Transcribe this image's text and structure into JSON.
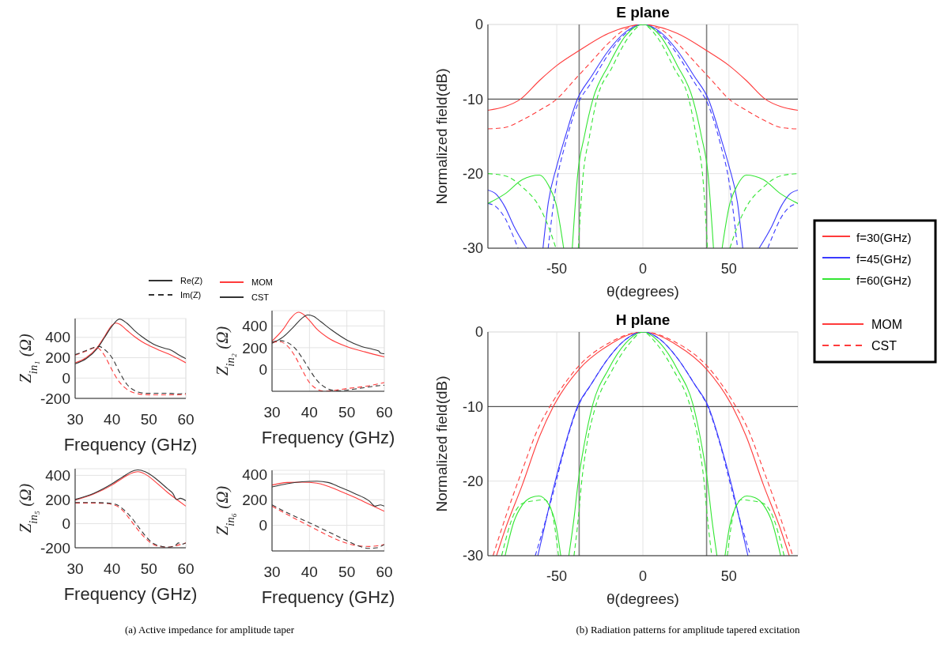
{
  "chart_data": [
    {
      "type": "line",
      "ylabel": "Z$_{in₁}$ (Ω)",
      "xlabel": "Frequency (GHz)",
      "xlim": [
        30,
        60
      ],
      "xticks": [
        30,
        40,
        50,
        60
      ],
      "ylim": [
        -200,
        585
      ],
      "yticks": [
        -200,
        0,
        200,
        400
      ],
      "grid": true,
      "annotations": [
        "Re(Z)",
        "Im(Z)",
        "MOM",
        "CST",
        "(a) Active impedance for amplitude taper"
      ],
      "series": [
        {
          "color": "#ff3b3b",
          "line_style": "solid",
          "x": [
            30,
            33,
            36,
            38,
            40,
            41,
            42,
            44,
            46,
            48,
            50,
            53,
            56,
            60
          ],
          "values": [
            150,
            200,
            300,
            410,
            520,
            540,
            530,
            470,
            410,
            360,
            320,
            270,
            225,
            150
          ]
        },
        {
          "color": "#333333",
          "line_style": "solid",
          "x": [
            30,
            33,
            36,
            38,
            40,
            42,
            44,
            46,
            48,
            50,
            52,
            54,
            56,
            58,
            59,
            60
          ],
          "values": [
            140,
            190,
            290,
            400,
            510,
            580,
            540,
            470,
            410,
            360,
            320,
            295,
            275,
            230,
            210,
            190
          ]
        },
        {
          "color": "#ff3b3b",
          "line_style": "dashed",
          "x": [
            30,
            33,
            35,
            36,
            37,
            38,
            40,
            42,
            44,
            46,
            48,
            52,
            56,
            60
          ],
          "values": [
            225,
            265,
            295,
            300,
            270,
            220,
            80,
            -40,
            -110,
            -145,
            -160,
            -165,
            -165,
            -160
          ]
        },
        {
          "color": "#333333",
          "line_style": "dashed",
          "x": [
            30,
            33,
            35,
            36.5,
            38,
            40,
            42,
            44,
            46,
            48,
            50,
            55,
            58,
            60
          ],
          "values": [
            230,
            270,
            300,
            310,
            280,
            200,
            60,
            -60,
            -120,
            -145,
            -150,
            -150,
            -155,
            -150
          ]
        }
      ]
    },
    {
      "type": "line",
      "ylabel": "Z$_{in₂}$ (Ω)",
      "xlabel": "Frequency (GHz)",
      "xlim": [
        30,
        60
      ],
      "xticks": [
        30,
        40,
        50,
        60
      ],
      "ylim": [
        -200,
        540
      ],
      "yticks": [
        0,
        200,
        400
      ],
      "grid": true,
      "series": [
        {
          "color": "#ff3b3b",
          "line_style": "solid",
          "x": [
            30,
            33,
            35,
            37,
            38,
            40,
            42,
            45,
            50,
            55,
            60
          ],
          "values": [
            260,
            370,
            470,
            525,
            515,
            450,
            370,
            290,
            210,
            160,
            115
          ]
        },
        {
          "color": "#333333",
          "line_style": "solid",
          "x": [
            30,
            33,
            36,
            38,
            39.5,
            41,
            43,
            46,
            50,
            54,
            57,
            58.5,
            59,
            60
          ],
          "values": [
            240,
            300,
            400,
            470,
            500,
            490,
            440,
            360,
            270,
            210,
            185,
            170,
            150,
            145
          ]
        },
        {
          "color": "#ff3b3b",
          "line_style": "dashed",
          "x": [
            30,
            32,
            34,
            36,
            38,
            40,
            42,
            44,
            46,
            50,
            55,
            60
          ],
          "values": [
            250,
            255,
            220,
            130,
            0,
            -120,
            -180,
            -200,
            -195,
            -175,
            -155,
            -120
          ]
        },
        {
          "color": "#333333",
          "line_style": "dashed",
          "x": [
            30,
            32,
            34,
            36,
            38,
            40,
            42,
            44,
            46,
            48,
            52,
            56,
            58,
            60
          ],
          "values": [
            250,
            265,
            250,
            200,
            110,
            0,
            -100,
            -160,
            -190,
            -195,
            -180,
            -160,
            -150,
            -145
          ]
        }
      ]
    },
    {
      "type": "line",
      "ylabel": "Z$_{in₅}$ (Ω)",
      "xlabel": "Frequency (GHz)",
      "xlim": [
        30,
        60
      ],
      "xticks": [
        30,
        40,
        50,
        60
      ],
      "ylim": [
        -200,
        455
      ],
      "yticks": [
        -200,
        0,
        200,
        400
      ],
      "grid": true,
      "series": [
        {
          "color": "#ff3b3b",
          "line_style": "solid",
          "x": [
            30,
            35,
            40,
            43,
            46,
            47,
            49,
            52,
            55,
            58,
            60
          ],
          "values": [
            195,
            245,
            320,
            380,
            425,
            430,
            410,
            340,
            260,
            190,
            145
          ]
        },
        {
          "color": "#333333",
          "line_style": "solid",
          "x": [
            30,
            35,
            40,
            43,
            46,
            47,
            49,
            52,
            55,
            56.5,
            57.5,
            58.5,
            60
          ],
          "values": [
            200,
            250,
            330,
            390,
            440,
            445,
            430,
            370,
            290,
            250,
            200,
            210,
            190
          ]
        },
        {
          "color": "#ff3b3b",
          "line_style": "dashed",
          "x": [
            30,
            35,
            38,
            41,
            43,
            45,
            47,
            49,
            51,
            53,
            55,
            57,
            60
          ],
          "values": [
            170,
            170,
            168,
            150,
            105,
            30,
            -50,
            -120,
            -170,
            -190,
            -195,
            -185,
            -160
          ]
        },
        {
          "color": "#333333",
          "line_style": "dashed",
          "x": [
            30,
            35,
            38,
            41,
            43,
            45,
            47,
            49,
            51,
            53,
            55,
            57,
            58,
            59,
            60
          ],
          "values": [
            175,
            175,
            172,
            160,
            120,
            60,
            -20,
            -100,
            -160,
            -185,
            -195,
            -185,
            -160,
            -170,
            -160
          ]
        }
      ]
    },
    {
      "type": "line",
      "ylabel": "Z$_{in₆}$ (Ω)",
      "xlabel": "Frequency (GHz)",
      "xlim": [
        30,
        60
      ],
      "xticks": [
        30,
        40,
        50,
        60
      ],
      "ylim": [
        -200,
        430
      ],
      "yticks": [
        0,
        200,
        400
      ],
      "grid": true,
      "series": [
        {
          "color": "#ff3b3b",
          "line_style": "solid",
          "x": [
            30,
            34,
            38,
            42,
            45,
            48,
            52,
            56,
            60
          ],
          "values": [
            315,
            335,
            337,
            330,
            305,
            270,
            220,
            165,
            110
          ]
        },
        {
          "color": "#333333",
          "line_style": "solid",
          "x": [
            30,
            34,
            38,
            42,
            45,
            48,
            52,
            56,
            57.5,
            59,
            60
          ],
          "values": [
            300,
            325,
            340,
            345,
            335,
            300,
            250,
            190,
            150,
            160,
            150
          ]
        },
        {
          "color": "#ff3b3b",
          "line_style": "dashed",
          "x": [
            30,
            35,
            40,
            45,
            50,
            53,
            56,
            60
          ],
          "values": [
            150,
            70,
            -5,
            -80,
            -140,
            -160,
            -165,
            -150
          ]
        },
        {
          "color": "#333333",
          "line_style": "dashed",
          "x": [
            30,
            35,
            40,
            45,
            50,
            53,
            56,
            58,
            60
          ],
          "values": [
            160,
            85,
            20,
            -50,
            -120,
            -160,
            -180,
            -175,
            -150
          ]
        }
      ]
    },
    {
      "type": "line",
      "title": "E plane",
      "xlabel": "θ(degrees)",
      "ylabel": "Normalized field(dB)",
      "xlim": [
        -90,
        90
      ],
      "xticks": [
        -50,
        0,
        50
      ],
      "ylim": [
        -30,
        0
      ],
      "yticks": [
        -30,
        -20,
        -10,
        0
      ],
      "grid": true,
      "legend": "right",
      "ref_lines": [
        {
          "axis": "x",
          "value": -37,
          "color": "#808080"
        },
        {
          "axis": "x",
          "value": 37,
          "color": "#808080"
        },
        {
          "axis": "y",
          "value": -10,
          "color": "#000000"
        }
      ],
      "annotations": [
        "MOM",
        "CST",
        "(b) Radiation patterns for amplitude tapered excitation"
      ],
      "series": [
        {
          "name": "f=30(GHz)",
          "color": "#ff3b3b",
          "line_style": "solid",
          "x": [
            -90,
            -80,
            -71,
            -60,
            -50,
            -37,
            -20,
            0,
            20,
            37,
            50,
            60,
            71,
            80,
            90
          ],
          "values": [
            -11.5,
            -11,
            -10,
            -7.5,
            -5.5,
            -3.5,
            -1.2,
            0,
            -1.2,
            -3.5,
            -5.5,
            -7.5,
            -10,
            -11,
            -11.5
          ]
        },
        {
          "color": "#ff3b3b",
          "line_style": "dashed",
          "x": [
            -90,
            -80,
            -70,
            -60,
            -50,
            -40,
            -30,
            -20,
            -10,
            0,
            10,
            20,
            30,
            40,
            50,
            60,
            70,
            80,
            90
          ],
          "values": [
            -14,
            -13.8,
            -12.8,
            -11.5,
            -10,
            -7.5,
            -5,
            -2.5,
            -0.6,
            0,
            -0.6,
            -2.5,
            -5,
            -7.5,
            -10,
            -11.5,
            -12.8,
            -13.8,
            -14
          ]
        },
        {
          "name": "f=45(GHz)",
          "color": "#3a3aff",
          "line_style": "solid",
          "x": [
            -90,
            -85,
            -80,
            -75,
            -67.5,
            -62,
            -58,
            -55,
            -50,
            -45,
            -38,
            -30,
            -20,
            -10,
            0,
            10,
            20,
            30,
            38,
            45,
            50,
            55,
            58,
            62,
            67.5,
            75,
            80,
            85,
            90
          ],
          "values": [
            -22.2,
            -22.8,
            -24.5,
            -27,
            -30,
            null,
            -30,
            -24,
            -19,
            -15,
            -10,
            -7,
            -3.5,
            -1,
            0,
            -1,
            -3.5,
            -7,
            -10,
            -15,
            -19,
            -24,
            -30,
            null,
            -30,
            -27,
            -24.5,
            -22.8,
            -22.2
          ]
        },
        {
          "color": "#3a3aff",
          "line_style": "dashed",
          "x": [
            -90,
            -85,
            -80,
            -76,
            -72.5,
            -64,
            -55,
            -50,
            -45,
            -38,
            -30,
            -20,
            -10,
            0,
            10,
            20,
            30,
            38,
            45,
            50,
            55,
            64,
            72.5,
            76,
            80,
            85,
            90
          ],
          "values": [
            -24,
            -24.5,
            -26,
            -28,
            -30,
            null,
            -30,
            -21,
            -16,
            -10.8,
            -7.8,
            -4,
            -1.2,
            0,
            -1.2,
            -4,
            -7.8,
            -10.8,
            -16,
            -21,
            -30,
            null,
            -30,
            -28,
            -26,
            -24.5,
            -24
          ]
        },
        {
          "name": "f=60(GHz)",
          "color": "#33e633",
          "line_style": "solid",
          "x": [
            -90,
            -80,
            -70,
            -60,
            -55,
            -50,
            -46,
            -43.5,
            -41,
            -37.8,
            -34,
            -29,
            -20,
            -10,
            0,
            10,
            20,
            29,
            34,
            37.8,
            41,
            43.5,
            46,
            50,
            55,
            60,
            70,
            80,
            90
          ],
          "values": [
            -24,
            -22.7,
            -20.8,
            -20.2,
            -21.5,
            -24.5,
            -30,
            null,
            -30,
            -20,
            -15,
            -10,
            -5.5,
            -1.5,
            0,
            -1.5,
            -5.5,
            -10,
            -15,
            -20,
            -30,
            null,
            -30,
            -24.5,
            -21.5,
            -20.2,
            -20.8,
            -22.7,
            -24
          ]
        },
        {
          "color": "#33e633",
          "line_style": "dashed",
          "x": [
            -90,
            -80,
            -70,
            -60,
            -55,
            -50.5,
            -45,
            -37.5,
            -35,
            -31,
            -27,
            -18,
            -8,
            0,
            8,
            18,
            27,
            31,
            35,
            37.5,
            45,
            50.5,
            55,
            60,
            70,
            80,
            90
          ],
          "values": [
            -20,
            -20.3,
            -21.8,
            -24.5,
            -27,
            -30,
            null,
            -30,
            -21,
            -15,
            -10.3,
            -5.8,
            -1.6,
            0,
            -1.6,
            -5.8,
            -10.3,
            -15,
            -21,
            -30,
            null,
            -30,
            -27,
            -24.5,
            -21.8,
            -20.3,
            -20
          ]
        }
      ]
    },
    {
      "type": "line",
      "title": "H plane",
      "xlabel": "θ(degrees)",
      "ylabel": "Normalized field(dB)",
      "xlim": [
        -90,
        90
      ],
      "xticks": [
        -50,
        0,
        50
      ],
      "ylim": [
        -30,
        0
      ],
      "yticks": [
        -30,
        -20,
        -10,
        0
      ],
      "grid": true,
      "ref_lines": [
        {
          "axis": "x",
          "value": -37,
          "color": "#808080"
        },
        {
          "axis": "x",
          "value": 37,
          "color": "#808080"
        },
        {
          "axis": "y",
          "value": -10,
          "color": "#000000"
        }
      ],
      "series": [
        {
          "color": "#ff3b3b",
          "line_style": "solid",
          "x": [
            -85,
            -80,
            -70,
            -60,
            -52,
            -37,
            -20,
            0,
            20,
            37,
            52,
            60,
            70,
            80,
            85
          ],
          "values": [
            -30,
            -26.5,
            -20.5,
            -14,
            -10,
            -5,
            -1.8,
            0,
            -1.8,
            -5,
            -10,
            -14,
            -20.5,
            -26.5,
            -30
          ]
        },
        {
          "color": "#ff3b3b",
          "line_style": "dashed",
          "x": [
            -87,
            -80,
            -70,
            -60,
            -54,
            -37,
            -20,
            0,
            20,
            37,
            54,
            60,
            70,
            80,
            87
          ],
          "values": [
            -30,
            -25,
            -18.5,
            -12.5,
            -10,
            -4.5,
            -1.5,
            0,
            -1.5,
            -4.5,
            -10,
            -12.5,
            -18.5,
            -25,
            -30
          ]
        },
        {
          "color": "#3a3aff",
          "line_style": "solid",
          "x": [
            -61,
            -57,
            -52,
            -45,
            -38,
            -30,
            -20,
            -10,
            0,
            10,
            20,
            30,
            38,
            45,
            52,
            57,
            61
          ],
          "values": [
            -30,
            -26,
            -21,
            -15,
            -10,
            -7,
            -3.5,
            -1,
            0,
            -1,
            -3.5,
            -7,
            -10,
            -15,
            -21,
            -26,
            -30
          ]
        },
        {
          "color": "#3a3aff",
          "line_style": "dashed",
          "x": [
            -62.5,
            -58,
            -52,
            -45,
            -38,
            -30,
            -20,
            -10,
            0,
            10,
            20,
            30,
            38,
            45,
            52,
            58,
            62.5
          ],
          "values": [
            -30,
            -26.5,
            -21.5,
            -15.2,
            -10.2,
            -7,
            -3.5,
            -1,
            0,
            -1,
            -3.5,
            -7,
            -10.2,
            -15.2,
            -21.5,
            -26.5,
            -30
          ]
        },
        {
          "color": "#33e633",
          "line_style": "solid",
          "x": [
            -80,
            -75,
            -70,
            -65,
            -60.4,
            -55,
            -50,
            -47.7,
            -45,
            -43,
            -40,
            -37.5,
            -34,
            -29.4,
            -20,
            -10,
            0,
            10,
            20,
            29.4,
            34,
            37.5,
            40,
            43,
            45,
            47.7,
            50,
            55,
            60.4,
            65,
            70,
            75,
            80
          ],
          "values": [
            -30,
            -25.5,
            -23.2,
            -22.2,
            -22,
            -23,
            -26.5,
            -30,
            null,
            -30,
            -25,
            -20,
            -15,
            -10,
            -5,
            -1.5,
            0,
            -1.5,
            -5,
            -10,
            -15,
            -20,
            -25,
            -30,
            null,
            -30,
            -26.5,
            -23,
            -22,
            -22.2,
            -23.2,
            -25.5,
            -30
          ]
        },
        {
          "color": "#33e633",
          "line_style": "dashed",
          "x": [
            -82,
            -75,
            -70,
            -62,
            -57,
            -53,
            -49,
            -45,
            -40,
            -37.5,
            -35.5,
            -32.5,
            -27.5,
            -18,
            -8,
            0,
            8,
            18,
            27.5,
            32.5,
            35.5,
            37.5,
            40,
            45,
            49,
            53,
            57,
            62,
            70,
            75,
            82
          ],
          "values": [
            -30,
            -24.5,
            -23,
            -22.6,
            -22.5,
            -24,
            -30,
            null,
            -30,
            -25,
            -20,
            -15,
            -10,
            -5.2,
            -1.6,
            0,
            -1.6,
            -5.2,
            -10,
            -15,
            -20,
            -25,
            -30,
            null,
            -30,
            -24,
            -22.5,
            -22.6,
            -23,
            -24.5,
            -30
          ]
        }
      ]
    }
  ]
}
